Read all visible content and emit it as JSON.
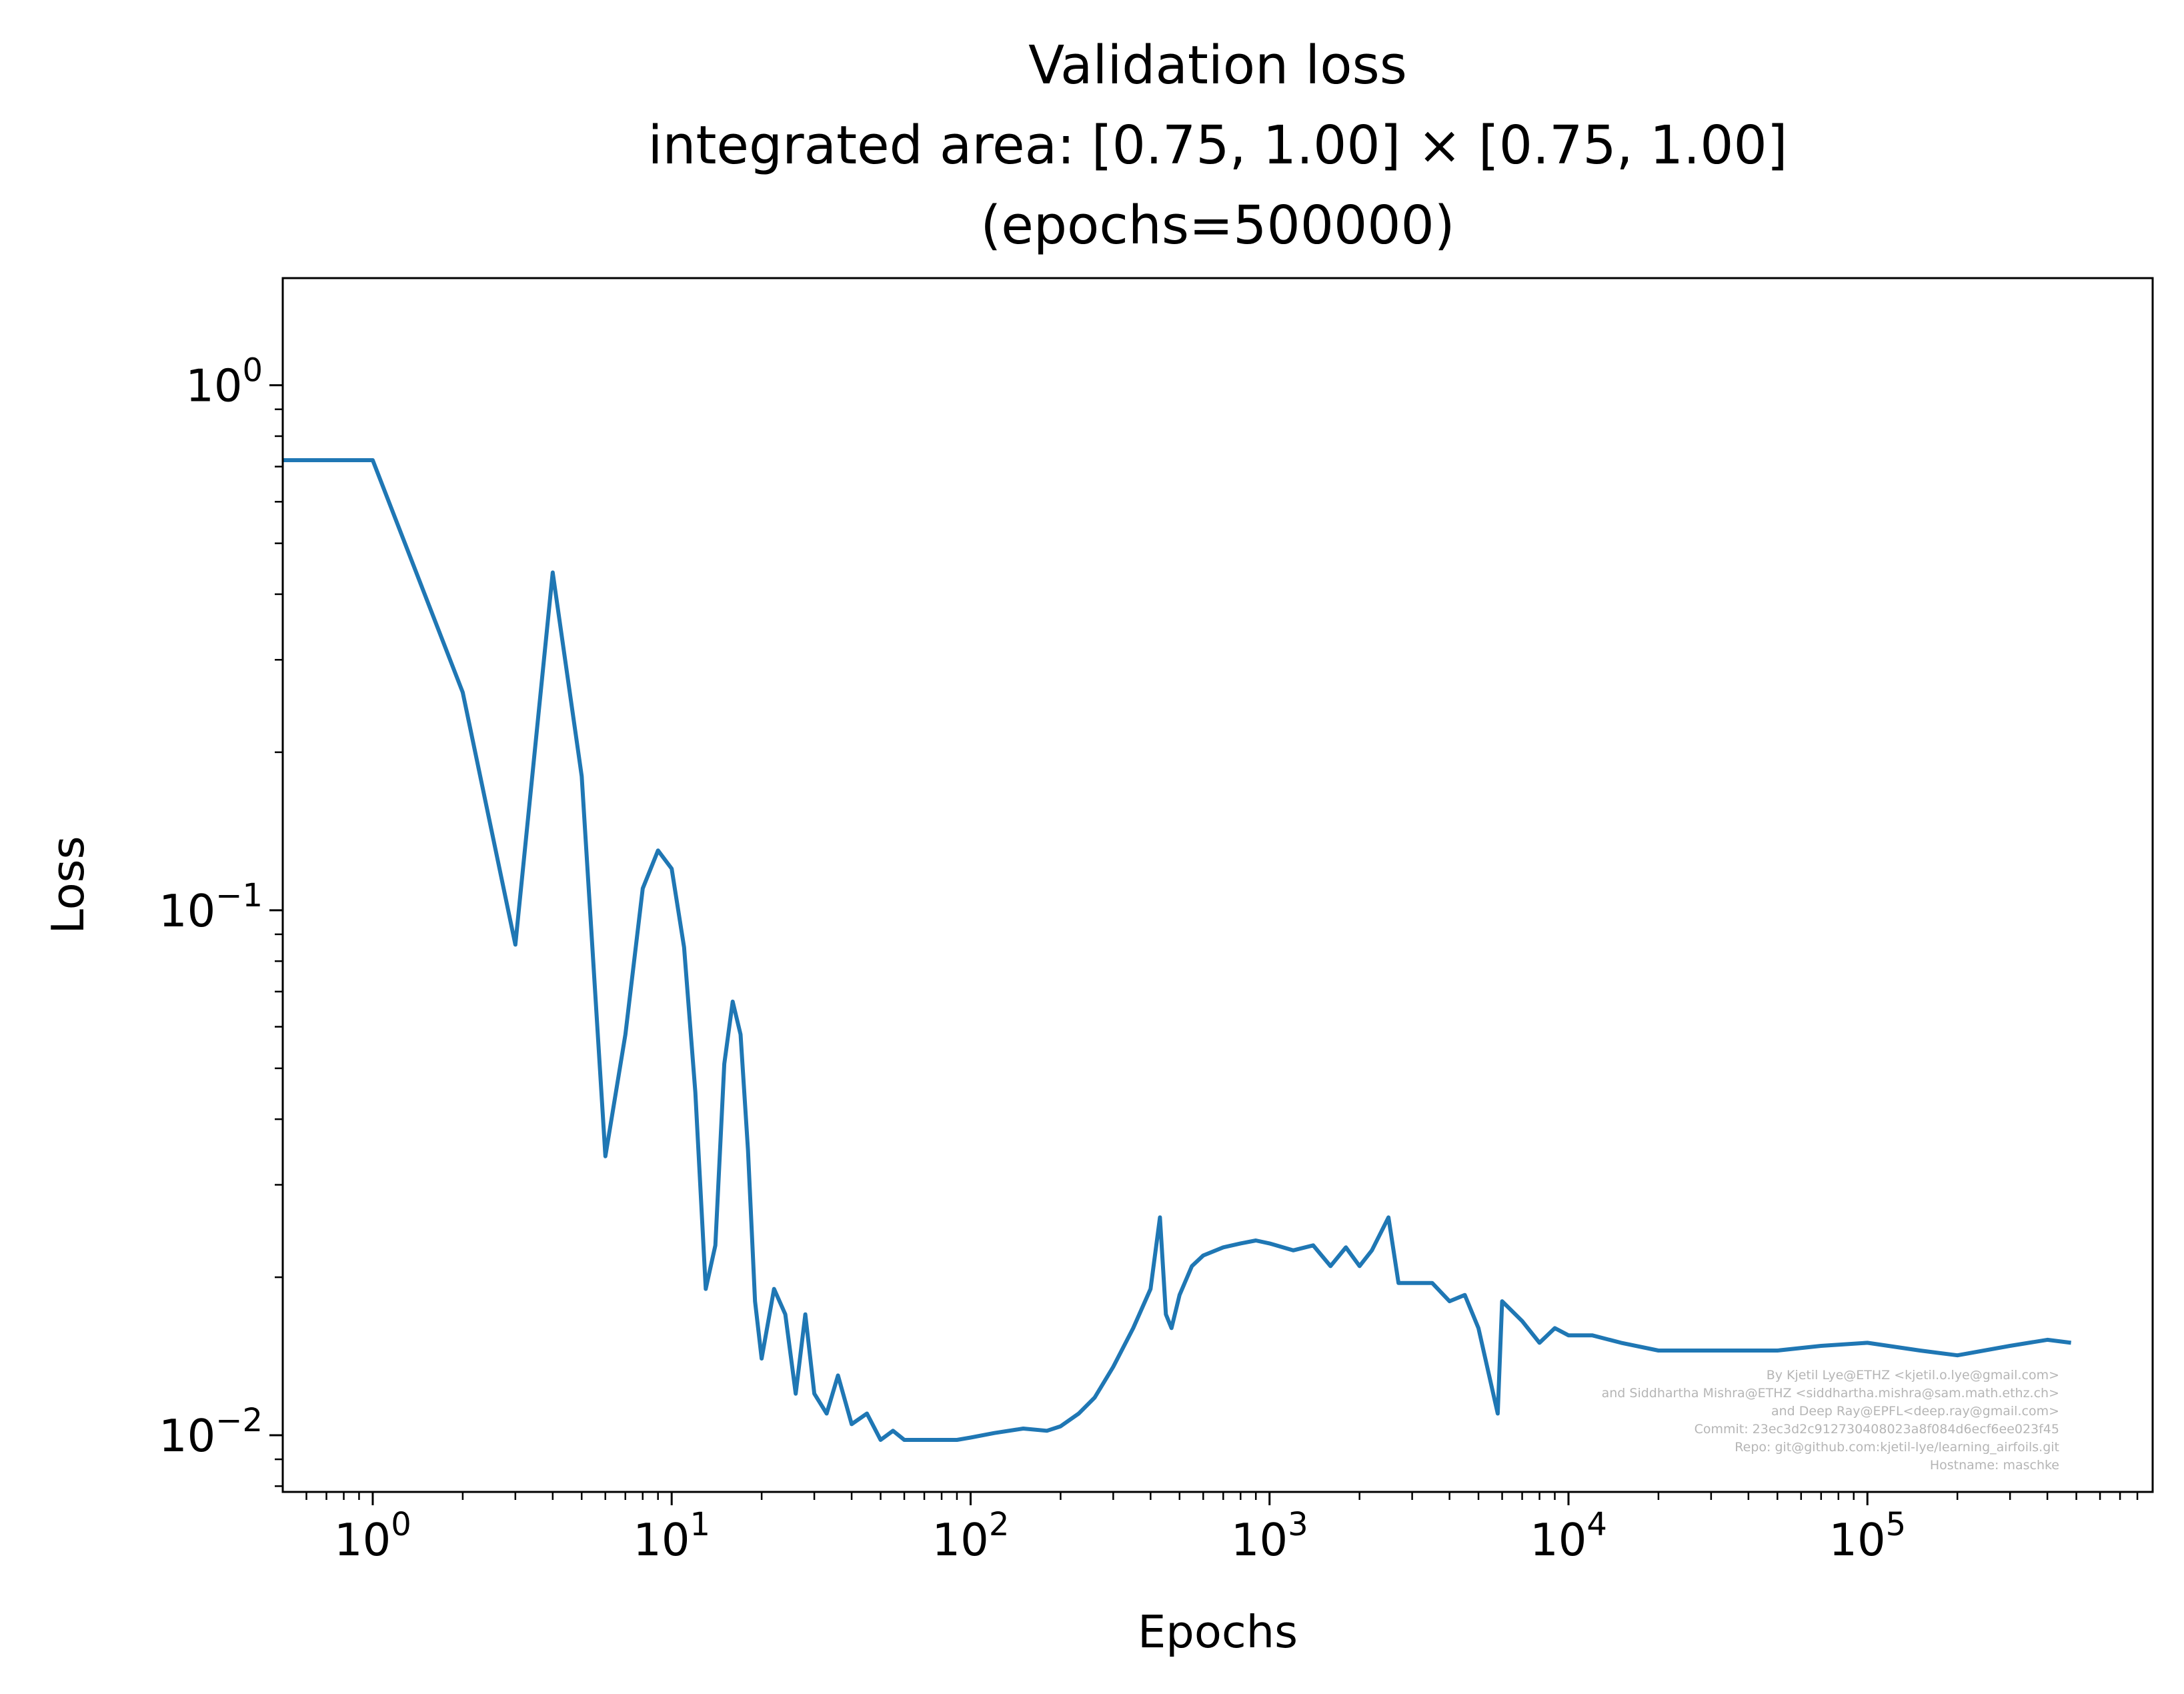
{
  "chart_data": {
    "type": "line",
    "title_lines": [
      "Validation loss",
      "integrated area: [0.75, 1.00] × [0.75, 1.00]",
      "(epochs=500000)"
    ],
    "xlabel": "Epochs",
    "ylabel": "Loss",
    "xscale": "log",
    "yscale": "log",
    "xlim": [
      0.5,
      900000
    ],
    "ylim": [
      0.0078,
      1.6
    ],
    "grid": false,
    "x_ticks": [
      {
        "base": "10",
        "exp": "0"
      },
      {
        "base": "10",
        "exp": "1"
      },
      {
        "base": "10",
        "exp": "2"
      },
      {
        "base": "10",
        "exp": "3"
      },
      {
        "base": "10",
        "exp": "4"
      },
      {
        "base": "10",
        "exp": "5"
      }
    ],
    "y_ticks": [
      {
        "base": "10",
        "exp": "0"
      },
      {
        "base": "10",
        "exp": "−1"
      },
      {
        "base": "10",
        "exp": "−2"
      }
    ],
    "series": [
      {
        "color": "#1f77b4",
        "x": [
          0.5,
          1,
          2,
          3,
          4,
          5,
          6,
          7,
          8,
          9,
          10,
          11,
          12,
          13,
          14,
          15,
          16,
          17,
          18,
          19,
          20,
          22,
          24,
          26,
          28,
          30,
          33,
          36,
          40,
          45,
          50,
          55,
          60,
          70,
          80,
          90,
          100,
          120,
          150,
          180,
          200,
          230,
          260,
          300,
          350,
          400,
          430,
          450,
          470,
          500,
          550,
          600,
          700,
          800,
          900,
          1000,
          1200,
          1400,
          1600,
          1800,
          2000,
          2200,
          2500,
          2700,
          3000,
          3500,
          4000,
          4500,
          5000,
          5800,
          6000,
          7000,
          8000,
          9000,
          10000,
          12000,
          15000,
          20000,
          30000,
          50000,
          70000,
          100000,
          150000,
          200000,
          300000,
          400000,
          480000
        ],
        "y": [
          0.72,
          0.72,
          0.26,
          0.086,
          0.44,
          0.18,
          0.034,
          0.058,
          0.11,
          0.13,
          0.12,
          0.085,
          0.045,
          0.019,
          0.023,
          0.051,
          0.067,
          0.058,
          0.035,
          0.018,
          0.014,
          0.019,
          0.017,
          0.012,
          0.017,
          0.012,
          0.011,
          0.013,
          0.0105,
          0.011,
          0.0098,
          0.0102,
          0.0098,
          0.0098,
          0.0098,
          0.0098,
          0.0099,
          0.0101,
          0.0103,
          0.0102,
          0.0104,
          0.011,
          0.0118,
          0.0135,
          0.016,
          0.019,
          0.026,
          0.017,
          0.016,
          0.0185,
          0.021,
          0.022,
          0.0228,
          0.0232,
          0.0235,
          0.0232,
          0.0225,
          0.023,
          0.021,
          0.0228,
          0.021,
          0.0225,
          0.026,
          0.0195,
          0.0195,
          0.0195,
          0.018,
          0.0185,
          0.016,
          0.011,
          0.018,
          0.0165,
          0.015,
          0.016,
          0.0155,
          0.0155,
          0.015,
          0.0145,
          0.0145,
          0.0145,
          0.0148,
          0.015,
          0.0145,
          0.0142,
          0.0148,
          0.0152,
          0.015
        ]
      }
    ],
    "watermark_lines": [
      "By Kjetil Lye@ETHZ <kjetil.o.lye@gmail.com>",
      "and Siddhartha Mishra@ETHZ <siddhartha.mishra@sam.math.ethz.ch>",
      "and Deep Ray@EPFL<deep.ray@gmail.com>",
      "Commit: 23ec3d2c912730408023a8f084d6ecf6ee023f45",
      "Repo: git@github.com:kjetil-lye/learning_airfoils.git",
      "Hostname: maschke"
    ]
  }
}
